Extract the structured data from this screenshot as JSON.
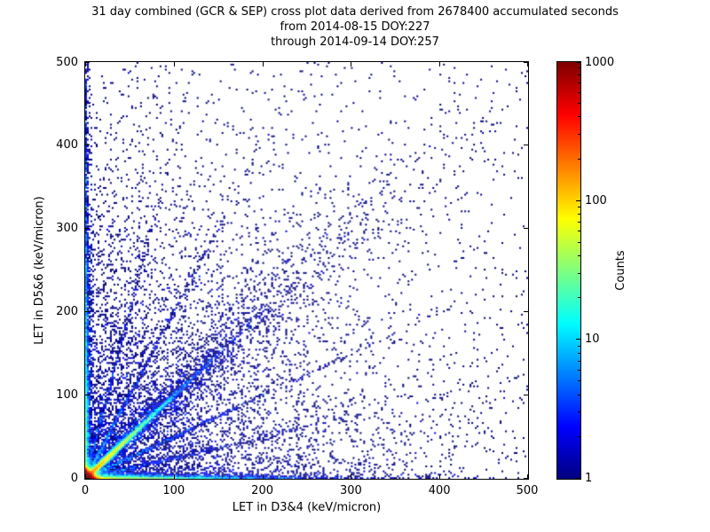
{
  "title": {
    "line1": "31 day combined (GCR & SEP) cross plot data derived from 2678400 accumulated seconds",
    "line2": "from 2014-08-15 DOY:227",
    "line3": "through 2014-09-14 DOY:257"
  },
  "chart_data": {
    "type": "heatmap",
    "title": "31 day combined (GCR & SEP) cross plot data derived from 2678400 accumulated seconds\nfrom 2014-08-15 DOY:227\nthrough 2014-09-14 DOY:257",
    "xlabel": "LET in D3&4 (keV/micron)",
    "ylabel": "LET in D5&6 (keV/micron)",
    "xlim": [
      0,
      500
    ],
    "ylim": [
      0,
      500
    ],
    "x_ticks": [
      "0",
      "100",
      "200",
      "300",
      "400",
      "500"
    ],
    "y_ticks": [
      "0",
      "100",
      "200",
      "300",
      "400",
      "500"
    ],
    "grid": false,
    "meta": {
      "days": 31,
      "sources": "GCR & SEP",
      "accumulated_seconds": 2678400,
      "date_from": "2014-08-15",
      "doy_from": 227,
      "date_through": "2014-09-14",
      "doy_through": 257
    },
    "colorbar": {
      "label": "Counts",
      "scale": "log",
      "min": 1,
      "max": 1000,
      "tick_labels": [
        "1000",
        "100",
        "10",
        "1"
      ],
      "colormap": "jet",
      "position": "right"
    },
    "bin_size": 2,
    "seed": 7,
    "components": [
      {
        "name": "origin-core",
        "n": 90000,
        "x": {
          "dist": "exp",
          "scale": 2.2
        },
        "y": {
          "dist": "exp",
          "scale": 2.2
        }
      },
      {
        "name": "diagonal-streak",
        "n": 9000,
        "diag": true,
        "L": {
          "dist": "exp",
          "scale": 30
        },
        "noise": 1.5
      },
      {
        "name": "diagonal-cloud",
        "n": 2500,
        "diag": true,
        "L": {
          "dist": "exp",
          "scale": 120
        },
        "noise": 2,
        "noise_rel": 0.09
      },
      {
        "name": "left-band",
        "n": 3500,
        "x": {
          "dist": "exp",
          "scale": 1.8
        },
        "y": {
          "dist": "exp",
          "scale": 150
        }
      },
      {
        "name": "bottom-band",
        "n": 4500,
        "x": {
          "dist": "exp",
          "scale": 70
        },
        "y": {
          "dist": "exp",
          "scale": 1.8
        }
      },
      {
        "name": "ray-slope-2",
        "n": 700,
        "ray": 2,
        "L": {
          "dist": "exp",
          "scale": 45
        },
        "noise": 1.2
      },
      {
        "name": "ray-slope-05",
        "n": 700,
        "ray": 0.5,
        "L": {
          "dist": "exp",
          "scale": 90
        },
        "noise": 1.2
      },
      {
        "name": "ray-slope-4",
        "n": 400,
        "ray": 4,
        "L": {
          "dist": "exp",
          "scale": 30
        },
        "noise": 1.2
      },
      {
        "name": "ray-slope-025",
        "n": 400,
        "ray": 0.25,
        "L": {
          "dist": "exp",
          "scale": 110
        },
        "noise": 1.2
      },
      {
        "name": "background-scatter",
        "n": 6000,
        "x": {
          "dist": "exp",
          "scale": 130
        },
        "y": {
          "dist": "exp",
          "scale": 130
        }
      },
      {
        "name": "uniform-far-field",
        "n": 700,
        "x": {
          "dist": "uniform",
          "min": 0,
          "max": 500
        },
        "y": {
          "dist": "uniform",
          "min": 0,
          "max": 500
        }
      }
    ]
  }
}
